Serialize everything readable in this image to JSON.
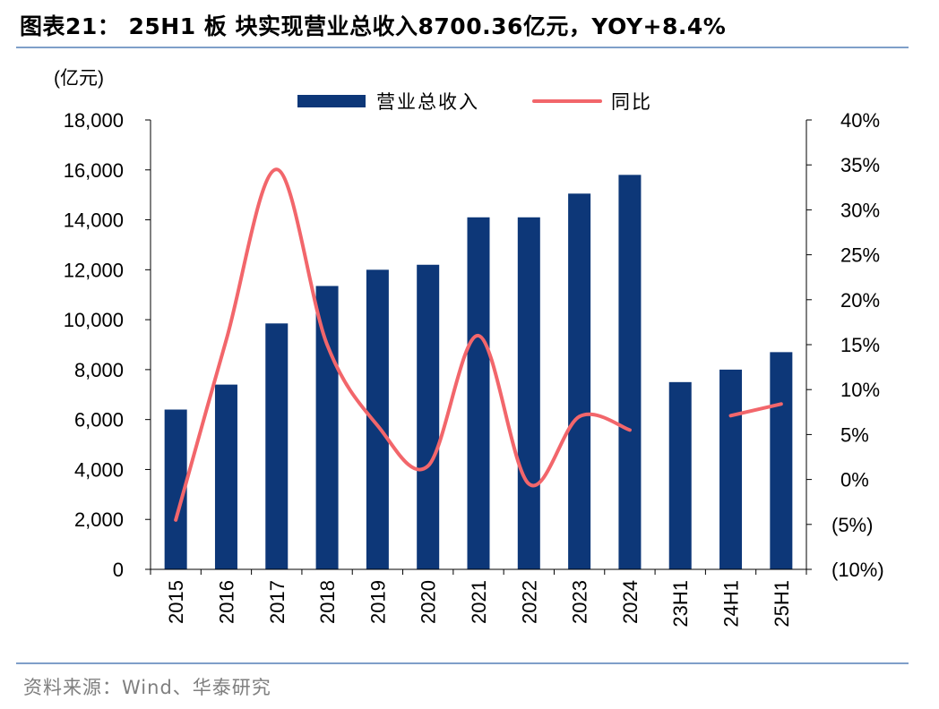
{
  "header": {
    "title": "图表21：  25H1 板 块实现营业总收入8700.36亿元，YOY+8.4%"
  },
  "footer": {
    "source": "资料来源：Wind、华泰研究"
  },
  "colors": {
    "bar": "#0d3778",
    "line": "#f2666b",
    "rule": "#7f9fc9"
  },
  "chart_data": {
    "type": "bar",
    "categories": [
      "2015",
      "2016",
      "2017",
      "2018",
      "2019",
      "2020",
      "2021",
      "2022",
      "2023",
      "2024",
      "23H1",
      "24H1",
      "25H1"
    ],
    "left_unit_label": "(亿元)",
    "left_axis": {
      "ylim": [
        0,
        18000
      ],
      "ticks": [
        0,
        2000,
        4000,
        6000,
        8000,
        10000,
        12000,
        14000,
        16000,
        18000
      ],
      "tick_labels": [
        "0",
        "2,000",
        "4,000",
        "6,000",
        "8,000",
        "10,000",
        "12,000",
        "14,000",
        "16,000",
        "18,000"
      ]
    },
    "right_axis": {
      "ylim": [
        -10,
        40
      ],
      "ticks": [
        -10,
        -5,
        0,
        5,
        10,
        15,
        20,
        25,
        30,
        35,
        40
      ],
      "tick_labels": [
        "(10%)",
        "(5%)",
        "0%",
        "5%",
        "10%",
        "15%",
        "20%",
        "25%",
        "30%",
        "35%",
        "40%"
      ]
    },
    "series": [
      {
        "name": "营业总收入",
        "type": "bar",
        "axis": "left",
        "values": [
          6400,
          7400,
          9850,
          11350,
          12000,
          12200,
          14100,
          14100,
          15050,
          15800,
          7500,
          8000,
          8700
        ]
      },
      {
        "name": "同比",
        "type": "line",
        "axis": "right",
        "smooth": true,
        "segments": [
          {
            "from": 0,
            "to": 9
          },
          {
            "from": 11,
            "to": 12
          }
        ],
        "values": [
          -4.5,
          15.5,
          34.5,
          15,
          6,
          1.5,
          16,
          -0.5,
          7,
          5.5,
          null,
          7.1,
          8.4
        ]
      }
    ],
    "legend_position": "top-center",
    "grid": false
  }
}
